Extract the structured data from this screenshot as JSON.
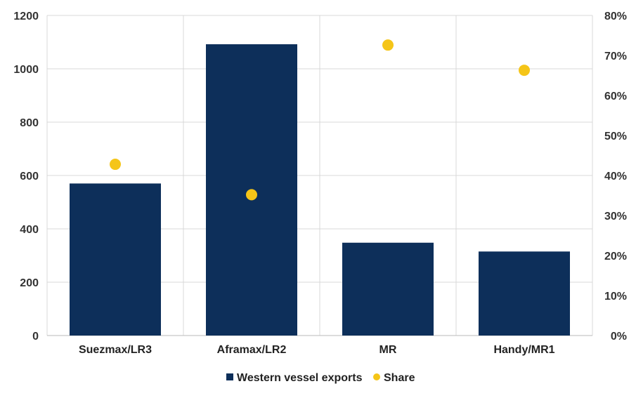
{
  "chart_data": {
    "type": "bar",
    "categories": [
      "Suezmax/LR3",
      "Aframax/LR2",
      "MR",
      "Handy/MR1"
    ],
    "series": [
      {
        "name": "Western vessel exports",
        "kind": "bar",
        "axis": "left",
        "color": "#0d2f5a",
        "values": [
          570,
          1092,
          348,
          315
        ]
      },
      {
        "name": "Share",
        "kind": "scatter",
        "axis": "right",
        "color": "#f5c518",
        "values": [
          0.428,
          0.352,
          0.726,
          0.663
        ]
      }
    ],
    "y_left": {
      "min": 0,
      "max": 1200,
      "ticks": [
        "0",
        "200",
        "400",
        "600",
        "800",
        "1000",
        "1200"
      ]
    },
    "y_right": {
      "min": 0,
      "max": 0.8,
      "ticks": [
        "0%",
        "10%",
        "20%",
        "30%",
        "40%",
        "50%",
        "60%",
        "70%",
        "80%"
      ]
    },
    "grid": true,
    "legend_position": "bottom-center",
    "colors": {
      "grid": "#d9d9d9",
      "axis": "#c8c8c8"
    }
  }
}
